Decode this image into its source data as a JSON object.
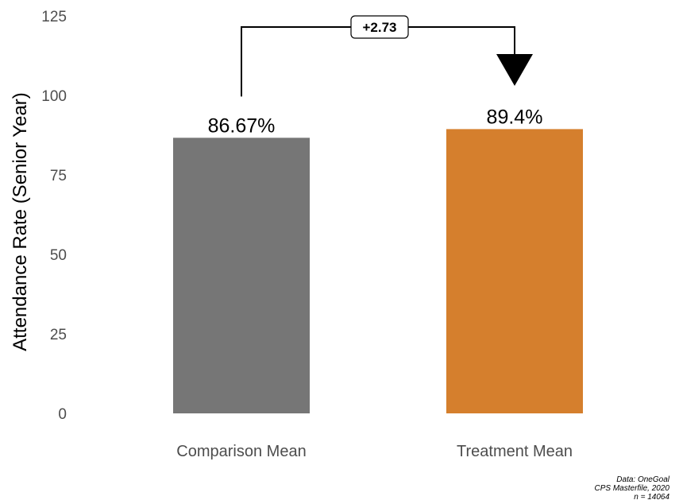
{
  "chart_data": {
    "type": "bar",
    "title": "",
    "xlabel": "",
    "ylabel": "Attendance Rate (Senior Year)",
    "ylim": [
      0,
      125
    ],
    "yticks": [
      0,
      25,
      50,
      75,
      100,
      125
    ],
    "categories": [
      "Comparison Mean",
      "Treatment Mean"
    ],
    "values": [
      86.67,
      89.4
    ],
    "value_labels": [
      "86.67%",
      "89.4%"
    ],
    "colors": [
      "#767676",
      "#d57f2d"
    ],
    "grid": false,
    "annotation": {
      "text": "+2.73",
      "from_category": "Comparison Mean",
      "to_category": "Treatment Mean",
      "bracket_y": 121.5,
      "arrow_tip_y": 103
    }
  },
  "caption": {
    "line1": "Data: OneGoal",
    "line2": "CPS Masterfile, 2020",
    "line3": "n = 14064"
  }
}
